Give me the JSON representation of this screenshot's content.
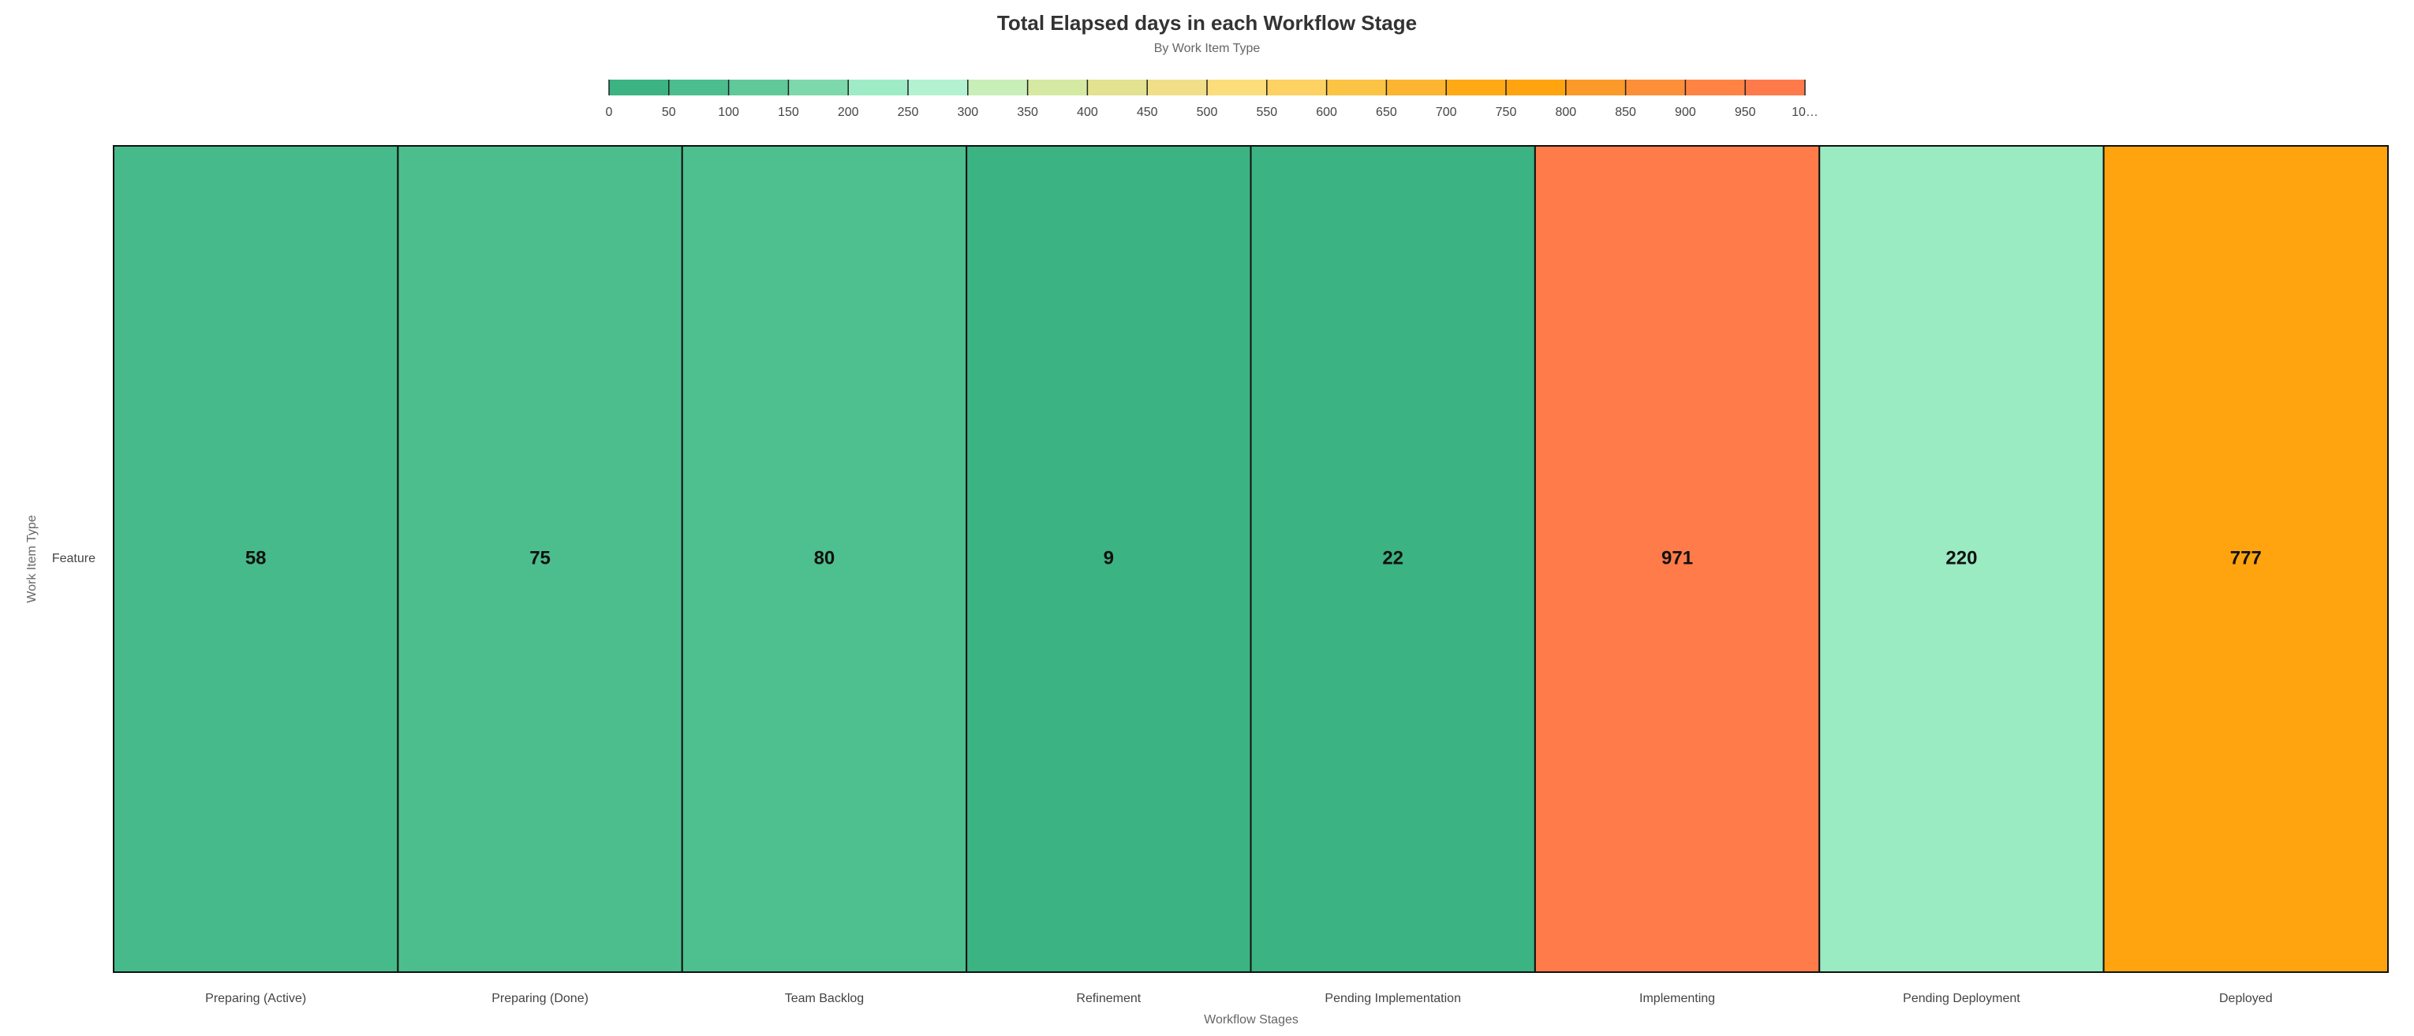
{
  "chart_data": {
    "type": "heatmap",
    "title": "Total Elapsed days in each Workflow Stage",
    "subtitle": "By Work Item Type",
    "x_label": "Workflow Stages",
    "y_label": "Work Item Type",
    "categories": [
      "Preparing (Active)",
      "Preparing (Done)",
      "Team Backlog",
      "Refinement",
      "Pending Implementation",
      "Implementing",
      "Pending Deployment",
      "Deployed"
    ],
    "rows": [
      "Feature"
    ],
    "values": [
      [
        58,
        75,
        80,
        9,
        22,
        971,
        220,
        777
      ]
    ],
    "colorbar_lim": [
      0,
      1000
    ],
    "colorbar_ticks": [
      0,
      50,
      100,
      150,
      200,
      250,
      300,
      350,
      400,
      450,
      500,
      550,
      600,
      650,
      700,
      750,
      800,
      850,
      900,
      950,
      {
        "value": 1000,
        "label": "10…"
      }
    ],
    "colorscale": [
      "#3bb382",
      "#4cbe8e",
      "#5fc99a",
      "#7dd8ab",
      "#9decc5",
      "#b3f2d0",
      "#c8efb8",
      "#d6e9a2",
      "#e2e290",
      "#f0df88",
      "#fbdd7a",
      "#fdd263",
      "#fbc444",
      "#fcb530",
      "#ffaa15",
      "#ffa40e",
      "#fb9a29",
      "#fc8f38",
      "#ff8444",
      "#ff7a4a"
    ]
  }
}
